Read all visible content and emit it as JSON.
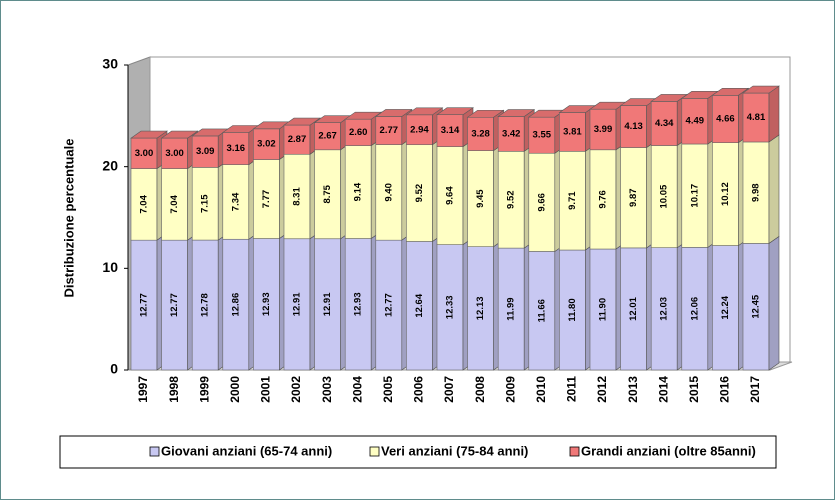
{
  "chart_data": {
    "type": "bar",
    "stacked": true,
    "y_label": "Distribuzione percentuale",
    "categories": [
      "1997",
      "1998",
      "1999",
      "2000",
      "2001",
      "2002",
      "2003",
      "2004",
      "2005",
      "2006",
      "2007",
      "2008",
      "2009",
      "2010",
      "2011",
      "2012",
      "2013",
      "2014",
      "2015",
      "2016",
      "2017"
    ],
    "ylim": [
      0,
      30
    ],
    "yticks": [
      0,
      10,
      20,
      30
    ],
    "legend": "bottom",
    "series": [
      {
        "name": "Giovani anziani (65-74 anni)",
        "color": "#c8c8f2",
        "values": [
          12.77,
          12.77,
          12.78,
          12.86,
          12.93,
          12.91,
          12.91,
          12.93,
          12.77,
          12.64,
          12.33,
          12.13,
          11.99,
          11.66,
          11.8,
          11.9,
          12.01,
          12.03,
          12.06,
          12.24,
          12.45
        ],
        "value_labels": [
          "12.77",
          "12.77",
          "12.78",
          "12.86",
          "12.93",
          "12.91",
          "12.91",
          "12.93",
          "12.77",
          "12.64",
          "12.33",
          "12.13",
          "11.99",
          "11.66",
          "11.80",
          "11.90",
          "12.01",
          "12.03",
          "12.06",
          "12.24",
          "12.45"
        ]
      },
      {
        "name": "Veri anziani (75-84 anni)",
        "color": "#ffffc4",
        "values": [
          7.04,
          7.04,
          7.15,
          7.34,
          7.77,
          8.31,
          8.75,
          9.14,
          9.4,
          9.52,
          9.64,
          9.45,
          9.52,
          9.66,
          9.71,
          9.76,
          9.87,
          10.05,
          10.17,
          10.12,
          9.98
        ],
        "value_labels": [
          "7.04",
          "7.04",
          "7.15",
          "7.34",
          "7.77",
          "8.31",
          "8.75",
          "9.14",
          "9.40",
          "9.52",
          "9.64",
          "9.45",
          "9.52",
          "9.66",
          "9.71",
          "9.76",
          "9.87",
          "10.05",
          "10.17",
          "10.12",
          "9.98"
        ]
      },
      {
        "name": "Grandi anziani (oltre 85anni)",
        "color": "#f07878",
        "values": [
          3.0,
          3.0,
          3.09,
          3.16,
          3.02,
          2.87,
          2.67,
          2.6,
          2.77,
          2.94,
          3.14,
          3.28,
          3.42,
          3.55,
          3.81,
          3.99,
          4.13,
          4.34,
          4.49,
          4.66,
          4.81
        ],
        "value_labels": [
          "3.00",
          "3.00",
          "3.09",
          "3.16",
          "3.02",
          "2.87",
          "2.67",
          "2.60",
          "2.77",
          "2.94",
          "3.14",
          "3.28",
          "3.42",
          "3.55",
          "3.81",
          "3.99",
          "4.13",
          "4.34",
          "4.49",
          "4.66",
          "4.81"
        ]
      }
    ]
  }
}
